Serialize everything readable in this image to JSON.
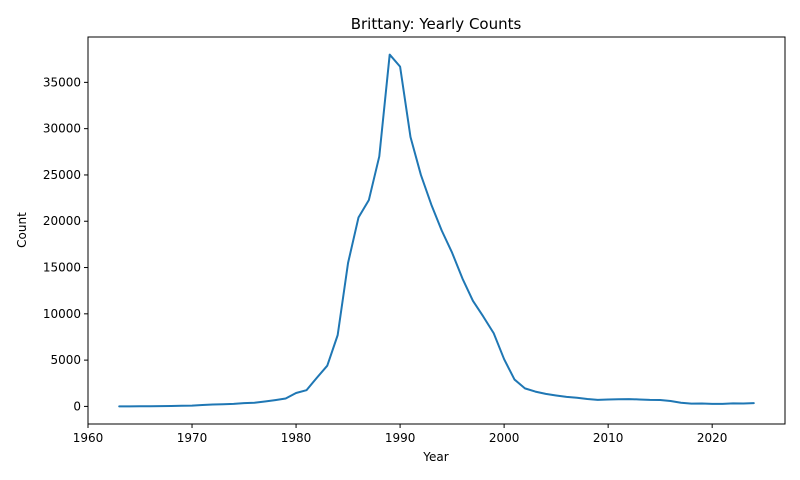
{
  "chart_data": {
    "type": "line",
    "title": "Brittany: Yearly Counts",
    "xlabel": "Year",
    "ylabel": "Count",
    "xlim": [
      1960,
      2027
    ],
    "ylim": [
      -1900,
      39900
    ],
    "xticks": [
      1960,
      1970,
      1980,
      1990,
      2000,
      2010,
      2020
    ],
    "yticks": [
      0,
      5000,
      10000,
      15000,
      20000,
      25000,
      30000,
      35000
    ],
    "grid": false,
    "series_color": "#1f77b4",
    "series": [
      {
        "x": [
          1963,
          1964,
          1965,
          1966,
          1967,
          1968,
          1969,
          1970,
          1971,
          1972,
          1973,
          1974,
          1975,
          1976,
          1977,
          1978,
          1979,
          1980,
          1981,
          1982,
          1983,
          1984,
          1985,
          1986,
          1987,
          1988,
          1989,
          1990,
          1991,
          1992,
          1993,
          1994,
          1995,
          1996,
          1997,
          1998,
          1999,
          2000,
          2001,
          2002,
          2003,
          2004,
          2005,
          2006,
          2007,
          2008,
          2009,
          2010,
          2011,
          2012,
          2013,
          2014,
          2015,
          2016,
          2017,
          2018,
          2019,
          2020,
          2021,
          2022,
          2023,
          2024
        ],
        "values": [
          5,
          10,
          15,
          20,
          30,
          50,
          70,
          90,
          150,
          200,
          230,
          270,
          350,
          400,
          530,
          680,
          850,
          1450,
          1750,
          3100,
          4400,
          7700,
          15500,
          20400,
          22300,
          27000,
          38000,
          36700,
          29100,
          25000,
          21800,
          19000,
          16600,
          13800,
          11400,
          9700,
          7900,
          5100,
          2900,
          1950,
          1600,
          1350,
          1180,
          1030,
          930,
          800,
          700,
          750,
          780,
          790,
          750,
          700,
          690,
          580,
          400,
          300,
          310,
          270,
          280,
          330,
          320,
          360
        ]
      }
    ]
  }
}
